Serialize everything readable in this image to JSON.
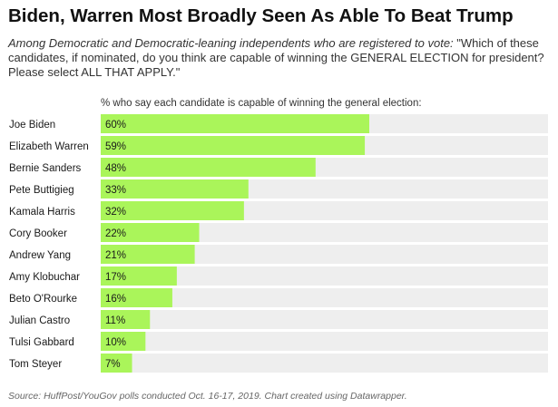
{
  "title": "Biden, Warren Most Broadly Seen As Able To Beat Trump",
  "subtitle_italic": "Among Democratic and Democratic-leaning independents who are registered to vote:",
  "subtitle_rest": " \"Which of these candidates, if nominated, do you think are capable of winning the GENERAL ELECTION for president? Please select ALL THAT APPLY.\"",
  "source": "Source: HuffPost/YouGov polls conducted Oct. 16-17, 2019. Chart created using Datawrapper.",
  "colors": {
    "bar": "#aaf55a",
    "track": "#eeeeee",
    "text": "#1a1a1a"
  },
  "chart_data": {
    "type": "bar",
    "orientation": "horizontal",
    "xlabel": "% who say each candidate is capable of winning the general election:",
    "xlim": [
      0,
      100
    ],
    "value_suffix": "%",
    "categories": [
      "Joe Biden",
      "Elizabeth Warren",
      "Bernie Sanders",
      "Pete Buttigieg",
      "Kamala Harris",
      "Cory Booker",
      "Andrew Yang",
      "Amy Klobuchar",
      "Beto O'Rourke",
      "Julian Castro",
      "Tulsi Gabbard",
      "Tom Steyer"
    ],
    "values": [
      60,
      59,
      48,
      33,
      32,
      22,
      21,
      17,
      16,
      11,
      10,
      7
    ],
    "labels": [
      "60%",
      "59%",
      "48%",
      "33%",
      "32%",
      "22%",
      "21%",
      "17%",
      "16%",
      "11%",
      "10%",
      "7%"
    ]
  }
}
